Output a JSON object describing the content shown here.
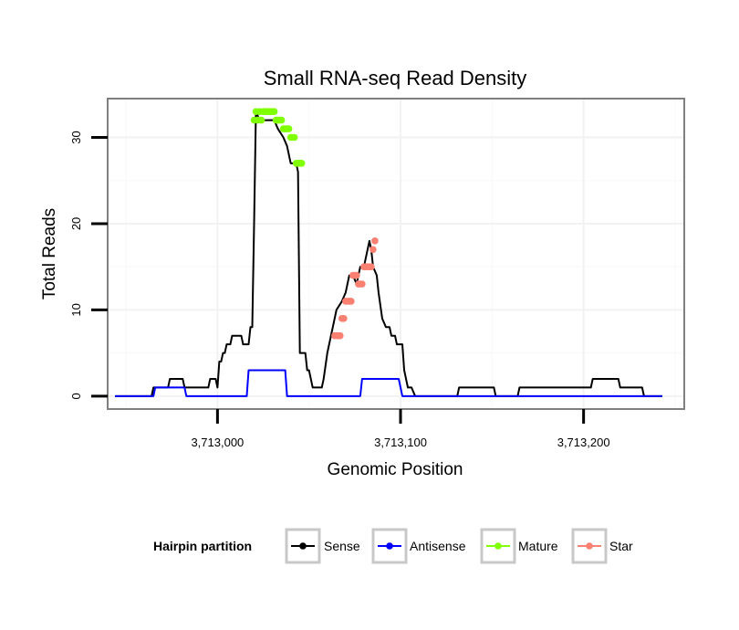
{
  "chart_data": {
    "type": "line",
    "title": "Small RNA-seq Read Density",
    "xlabel": "Genomic Position",
    "ylabel": "Total Reads",
    "xlim": [
      2940,
      3255
    ],
    "ylim": [
      -1.5,
      34.5
    ],
    "x_ticks": [
      3000,
      3100,
      3200
    ],
    "x_tick_labels": [
      "3,713,000",
      "3,713,100",
      "3,713,200"
    ],
    "y_ticks": [
      0,
      10,
      20,
      30
    ],
    "y_tick_labels": [
      "0",
      "10",
      "20",
      "30"
    ],
    "grid": true,
    "legend": {
      "title": "Hairpin partition",
      "position": "bottom",
      "entries": [
        {
          "label": "Sense",
          "color": "#000000"
        },
        {
          "label": "Antisense",
          "color": "#0000ff"
        },
        {
          "label": "Mature",
          "color": "#7fff00"
        },
        {
          "label": "Star",
          "color": "#fa8072"
        }
      ]
    },
    "series": [
      {
        "name": "Sense",
        "color": "#000000",
        "marker": "none",
        "points": [
          [
            2944,
            0
          ],
          [
            2964,
            0
          ],
          [
            2965,
            1
          ],
          [
            2973,
            1
          ],
          [
            2974,
            2
          ],
          [
            2981,
            2
          ],
          [
            2982,
            1
          ],
          [
            2995,
            1
          ],
          [
            2996,
            2
          ],
          [
            2999,
            2
          ],
          [
            3000,
            1
          ],
          [
            3001,
            4
          ],
          [
            3002,
            4
          ],
          [
            3003,
            5
          ],
          [
            3004,
            5
          ],
          [
            3005,
            6
          ],
          [
            3007,
            6
          ],
          [
            3008,
            7
          ],
          [
            3013,
            7
          ],
          [
            3014,
            6
          ],
          [
            3017,
            6
          ],
          [
            3018,
            8
          ],
          [
            3019,
            8
          ],
          [
            3020,
            20
          ],
          [
            3021,
            33
          ],
          [
            3023,
            32
          ],
          [
            3025,
            32
          ],
          [
            3028,
            32
          ],
          [
            3031,
            32
          ],
          [
            3033,
            31
          ],
          [
            3036,
            30
          ],
          [
            3038,
            29
          ],
          [
            3040,
            27
          ],
          [
            3043,
            27
          ],
          [
            3044,
            26
          ],
          [
            3045,
            5
          ],
          [
            3048,
            5
          ],
          [
            3049,
            3
          ],
          [
            3050,
            3
          ],
          [
            3051,
            2
          ],
          [
            3052,
            1
          ],
          [
            3057,
            1
          ],
          [
            3058,
            2
          ],
          [
            3060,
            5
          ],
          [
            3062,
            7
          ],
          [
            3063,
            8
          ],
          [
            3065,
            10
          ],
          [
            3068,
            11
          ],
          [
            3070,
            12
          ],
          [
            3072,
            14
          ],
          [
            3074,
            14
          ],
          [
            3076,
            13
          ],
          [
            3078,
            15
          ],
          [
            3080,
            15
          ],
          [
            3081,
            16
          ],
          [
            3083,
            18
          ],
          [
            3084,
            17
          ],
          [
            3085,
            15
          ],
          [
            3087,
            14
          ],
          [
            3088,
            12
          ],
          [
            3090,
            9
          ],
          [
            3092,
            8
          ],
          [
            3094,
            8
          ],
          [
            3095,
            7
          ],
          [
            3097,
            7
          ],
          [
            3098,
            6
          ],
          [
            3101,
            6
          ],
          [
            3102,
            3
          ],
          [
            3104,
            1
          ],
          [
            3106,
            1
          ],
          [
            3108,
            0
          ],
          [
            3113,
            0
          ],
          [
            3131,
            0
          ],
          [
            3132,
            1
          ],
          [
            3151,
            1
          ],
          [
            3152,
            0
          ],
          [
            3164,
            0
          ],
          [
            3165,
            1
          ],
          [
            3204,
            1
          ],
          [
            3205,
            2
          ],
          [
            3219,
            2
          ],
          [
            3220,
            1
          ],
          [
            3232,
            1
          ],
          [
            3233,
            0
          ],
          [
            3243,
            0
          ]
        ]
      },
      {
        "name": "Antisense",
        "color": "#0000ff",
        "marker": "none",
        "points": [
          [
            2944,
            0
          ],
          [
            2965,
            0
          ],
          [
            2966,
            1
          ],
          [
            2982,
            1
          ],
          [
            2983,
            0
          ],
          [
            3016,
            0
          ],
          [
            3017,
            3
          ],
          [
            3037,
            3
          ],
          [
            3038,
            0
          ],
          [
            3078,
            0
          ],
          [
            3079,
            2
          ],
          [
            3099,
            2
          ],
          [
            3100,
            1
          ],
          [
            3101,
            0
          ],
          [
            3243,
            0
          ]
        ]
      },
      {
        "name": "Mature",
        "color": "#7fff00",
        "marker": "circle",
        "points": [
          [
            3020,
            32
          ],
          [
            3021,
            33
          ],
          [
            3022,
            32
          ],
          [
            3023,
            33
          ],
          [
            3024,
            32
          ],
          [
            3025,
            33
          ],
          [
            3026,
            33
          ],
          [
            3027,
            33
          ],
          [
            3028,
            33
          ],
          [
            3029,
            33
          ],
          [
            3030,
            33
          ],
          [
            3031,
            33
          ],
          [
            3032,
            32
          ],
          [
            3033,
            32
          ],
          [
            3034,
            32
          ],
          [
            3035,
            32
          ],
          [
            3036,
            31
          ],
          [
            3037,
            31
          ],
          [
            3038,
            31
          ],
          [
            3039,
            31
          ],
          [
            3040,
            30
          ],
          [
            3041,
            30
          ],
          [
            3042,
            30
          ],
          [
            3043,
            27
          ],
          [
            3044,
            27
          ],
          [
            3045,
            27
          ],
          [
            3046,
            27
          ]
        ]
      },
      {
        "name": "Star",
        "color": "#fa8072",
        "marker": "circle",
        "points": [
          [
            3064,
            7
          ],
          [
            3065,
            7
          ],
          [
            3066,
            7
          ],
          [
            3067,
            7
          ],
          [
            3068,
            9
          ],
          [
            3069,
            9
          ],
          [
            3070,
            11
          ],
          [
            3071,
            11
          ],
          [
            3072,
            11
          ],
          [
            3073,
            11
          ],
          [
            3074,
            14
          ],
          [
            3075,
            14
          ],
          [
            3076,
            14
          ],
          [
            3077,
            13
          ],
          [
            3078,
            13
          ],
          [
            3079,
            13
          ],
          [
            3080,
            15
          ],
          [
            3081,
            15
          ],
          [
            3082,
            15
          ],
          [
            3083,
            15
          ],
          [
            3084,
            15
          ],
          [
            3085,
            17
          ],
          [
            3086,
            18
          ]
        ]
      }
    ]
  }
}
